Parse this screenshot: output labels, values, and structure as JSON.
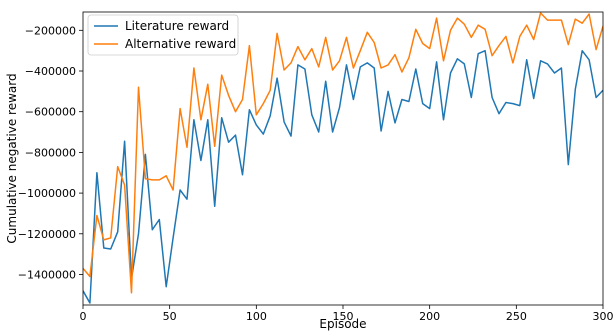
{
  "chart_data": {
    "type": "line",
    "xlabel": "Episode",
    "ylabel": "Cumulative negative reward",
    "xlim": [
      0,
      300
    ],
    "ylim": [
      -1550000,
      -110000
    ],
    "xticks": [
      0,
      50,
      100,
      150,
      200,
      250,
      300
    ],
    "yticks": [
      -1400000,
      -1200000,
      -1000000,
      -800000,
      -600000,
      -400000,
      -200000
    ],
    "grid": false,
    "legend_position": "top-left",
    "x": [
      0,
      4,
      8,
      12,
      16,
      20,
      24,
      28,
      32,
      36,
      40,
      44,
      48,
      52,
      56,
      60,
      64,
      68,
      72,
      76,
      80,
      84,
      88,
      92,
      96,
      100,
      104,
      108,
      112,
      116,
      120,
      124,
      128,
      132,
      136,
      140,
      144,
      148,
      152,
      156,
      160,
      164,
      168,
      172,
      176,
      180,
      184,
      188,
      192,
      196,
      200,
      204,
      208,
      212,
      216,
      220,
      224,
      228,
      232,
      236,
      240,
      244,
      248,
      252,
      256,
      260,
      264,
      268,
      272,
      276,
      280,
      284,
      288,
      292,
      296,
      300
    ],
    "series": [
      {
        "name": "Literature reward",
        "color": "#1f77b4",
        "values": [
          -1480000,
          -1540000,
          -900000,
          -1270000,
          -1275000,
          -1190000,
          -745000,
          -1420000,
          -1200000,
          -810000,
          -1180000,
          -1130000,
          -1460000,
          -1220000,
          -985000,
          -1030000,
          -640000,
          -840000,
          -640000,
          -1065000,
          -630000,
          -750000,
          -715000,
          -910000,
          -590000,
          -665000,
          -710000,
          -620000,
          -435000,
          -650000,
          -720000,
          -370000,
          -390000,
          -615000,
          -700000,
          -450000,
          -700000,
          -580000,
          -370000,
          -540000,
          -380000,
          -360000,
          -385000,
          -695000,
          -500000,
          -655000,
          -540000,
          -550000,
          -390000,
          -560000,
          -585000,
          -355000,
          -640000,
          -410000,
          -340000,
          -365000,
          -530000,
          -315000,
          -300000,
          -530000,
          -610000,
          -555000,
          -560000,
          -570000,
          -345000,
          -535000,
          -350000,
          -365000,
          -410000,
          -385000,
          -860000,
          -490000,
          -300000,
          -345000,
          -530000,
          -495000
        ]
      },
      {
        "name": "Alternative reward",
        "color": "#ff7f0e",
        "values": [
          -1370000,
          -1410000,
          -1110000,
          -1230000,
          -1220000,
          -870000,
          -960000,
          -1490000,
          -480000,
          -930000,
          -935000,
          -935000,
          -915000,
          -985000,
          -585000,
          -775000,
          -385000,
          -640000,
          -465000,
          -770000,
          -420000,
          -520000,
          -600000,
          -540000,
          -275000,
          -615000,
          -560000,
          -495000,
          -215000,
          -395000,
          -360000,
          -280000,
          -345000,
          -290000,
          -380000,
          -235000,
          -395000,
          -350000,
          -235000,
          -385000,
          -300000,
          -210000,
          -260000,
          -385000,
          -370000,
          -320000,
          -405000,
          -335000,
          -195000,
          -265000,
          -290000,
          -140000,
          -350000,
          -200000,
          -140000,
          -170000,
          -235000,
          -175000,
          -195000,
          -325000,
          -275000,
          -230000,
          -360000,
          -230000,
          -175000,
          -245000,
          -115000,
          -150000,
          -150000,
          -150000,
          -270000,
          -145000,
          -165000,
          -120000,
          -295000,
          -180000
        ]
      }
    ]
  }
}
